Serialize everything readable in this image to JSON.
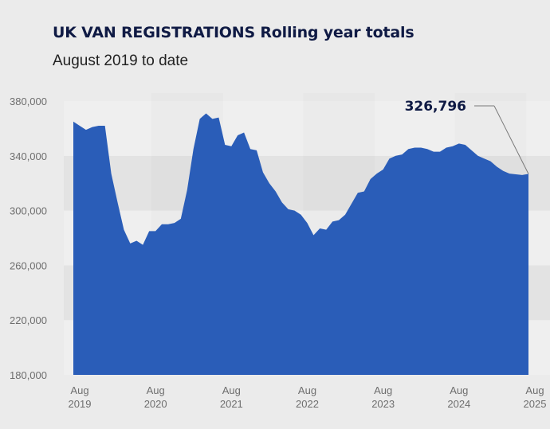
{
  "title": "UK VAN REGISTRATIONS Rolling year totals",
  "subtitle": "August 2019 to date",
  "colors": {
    "area": "#2a5db8",
    "band_dark": "#e3e3e3",
    "band_light": "#efefef",
    "text": "#0f1a44"
  },
  "chart_data": {
    "type": "area",
    "ylim": [
      180000,
      380000
    ],
    "yticks": [
      "180,000",
      "220,000",
      "260,000",
      "300,000",
      "340,000",
      "380,000"
    ],
    "ytick_values": [
      180000,
      220000,
      260000,
      300000,
      340000,
      380000
    ],
    "xtick_labels": [
      {
        "month": "Aug",
        "year": "2019"
      },
      {
        "month": "Aug",
        "year": "2020"
      },
      {
        "month": "Aug",
        "year": "2021"
      },
      {
        "month": "Aug",
        "year": "2022"
      },
      {
        "month": "Aug",
        "year": "2023"
      },
      {
        "month": "Aug",
        "year": "2024"
      },
      {
        "month": "Aug",
        "year": "2025"
      }
    ],
    "x": [
      "2019-08",
      "2019-09",
      "2019-10",
      "2019-11",
      "2019-12",
      "2020-01",
      "2020-02",
      "2020-03",
      "2020-04",
      "2020-05",
      "2020-06",
      "2020-07",
      "2020-08",
      "2020-09",
      "2020-10",
      "2020-11",
      "2020-12",
      "2021-01",
      "2021-02",
      "2021-03",
      "2021-04",
      "2021-05",
      "2021-06",
      "2021-07",
      "2021-08",
      "2021-09",
      "2021-10",
      "2021-11",
      "2021-12",
      "2022-01",
      "2022-02",
      "2022-03",
      "2022-04",
      "2022-05",
      "2022-06",
      "2022-07",
      "2022-08",
      "2022-09",
      "2022-10",
      "2022-11",
      "2022-12",
      "2023-01",
      "2023-02",
      "2023-03",
      "2023-04",
      "2023-05",
      "2023-06",
      "2023-07",
      "2023-08",
      "2023-09",
      "2023-10",
      "2023-11",
      "2023-12",
      "2024-01",
      "2024-02",
      "2024-03",
      "2024-04",
      "2024-05",
      "2024-06",
      "2024-07",
      "2024-08",
      "2024-09",
      "2024-10",
      "2024-11",
      "2024-12",
      "2025-01",
      "2025-02",
      "2025-03",
      "2025-04",
      "2025-05",
      "2025-06",
      "2025-07",
      "2025-08"
    ],
    "values": [
      365000,
      362000,
      359000,
      361000,
      362000,
      362000,
      327000,
      306000,
      286000,
      276000,
      278000,
      275000,
      285000,
      285000,
      290000,
      290000,
      291000,
      294000,
      315000,
      345000,
      367000,
      371000,
      367000,
      368000,
      348000,
      347000,
      355000,
      357000,
      345000,
      344000,
      328000,
      320000,
      314000,
      306000,
      301000,
      300000,
      297000,
      291000,
      282000,
      287000,
      286000,
      292000,
      293000,
      297000,
      305000,
      313000,
      314000,
      323000,
      327000,
      330000,
      338000,
      340000,
      341000,
      345000,
      346000,
      346000,
      345000,
      343000,
      343000,
      346000,
      347000,
      349000,
      348000,
      344000,
      340000,
      338000,
      336000,
      332000,
      329000,
      327000,
      326500,
      326000,
      326796
    ],
    "callout": "326,796"
  }
}
